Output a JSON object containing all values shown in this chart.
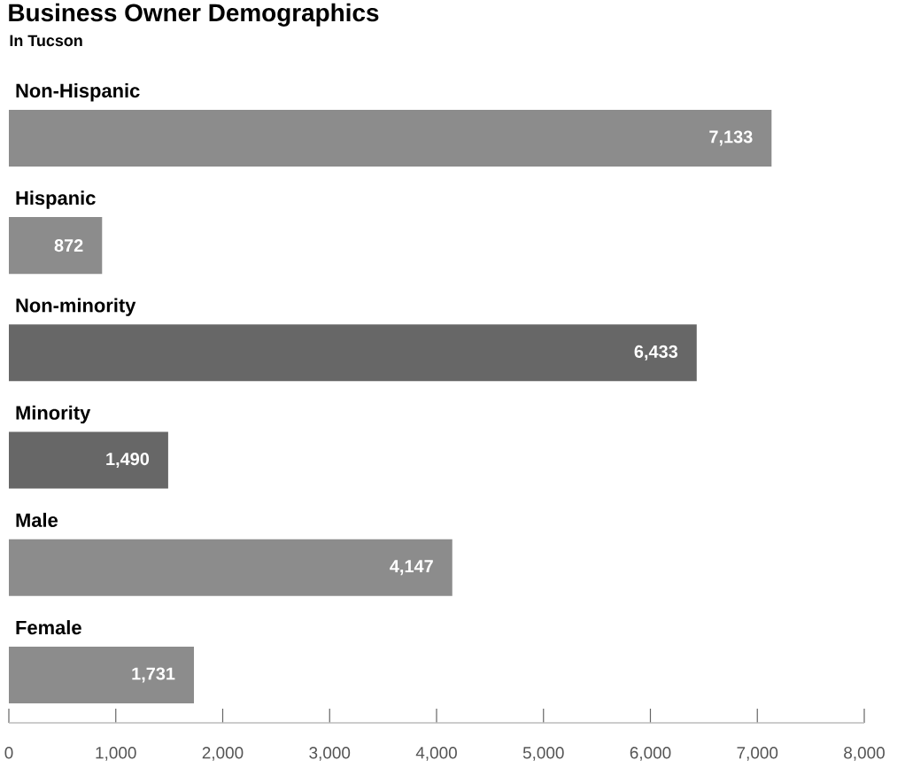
{
  "chart_data": {
    "type": "bar",
    "orientation": "horizontal",
    "title": "Business Owner Demographics",
    "subtitle": "In Tucson",
    "categories": [
      "Non-Hispanic",
      "Hispanic",
      "Non-minority",
      "Minority",
      "Male",
      "Female"
    ],
    "values": [
      7133,
      872,
      6433,
      1490,
      4147,
      1731
    ],
    "colors": [
      "#8c8c8c",
      "#8c8c8c",
      "#676767",
      "#676767",
      "#8c8c8c",
      "#8c8c8c"
    ],
    "value_labels": [
      "7,133",
      "872",
      "6,433",
      "1,490",
      "4,147",
      "1,731"
    ],
    "xlim": [
      0,
      8000
    ],
    "xticks": [
      0,
      {
        "value": 1000,
        "label": "1,000"
      },
      {
        "value": 2000,
        "label": "2,000"
      },
      {
        "value": 3000,
        "label": "3,000"
      },
      {
        "value": 4000,
        "label": "4,000"
      },
      {
        "value": 5000,
        "label": "5,000"
      },
      {
        "value": 6000,
        "label": "6,000"
      },
      {
        "value": 7000,
        "label": "7,000"
      },
      {
        "value": 8000,
        "label": "8,000"
      }
    ]
  }
}
